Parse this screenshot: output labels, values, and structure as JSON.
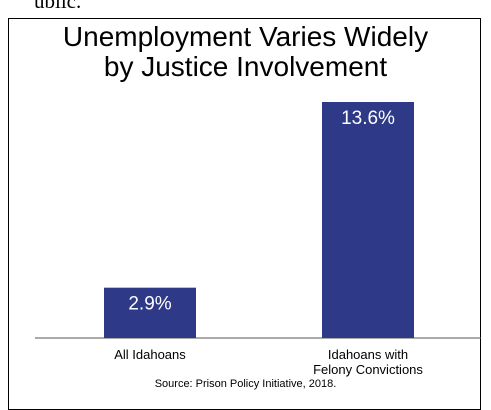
{
  "top_fragment": "ublic.",
  "chart_data": {
    "type": "bar",
    "title_lines": [
      "Unemployment Varies Widely",
      "by Justice Involvement"
    ],
    "categories": [
      "All Idahoans",
      "Idahoans with Felony Convictions"
    ],
    "category_label_lines": [
      [
        "All Idahoans"
      ],
      [
        "Idahoans with",
        "Felony Convictions"
      ]
    ],
    "values": [
      2.9,
      13.6
    ],
    "value_labels": [
      "2.9%",
      "13.6%"
    ],
    "ylim": [
      0,
      13.6
    ],
    "bar_color": "#2e3a87",
    "grid": false,
    "legend": "none",
    "source": "Source: Prison Policy Initiative, 2018."
  }
}
